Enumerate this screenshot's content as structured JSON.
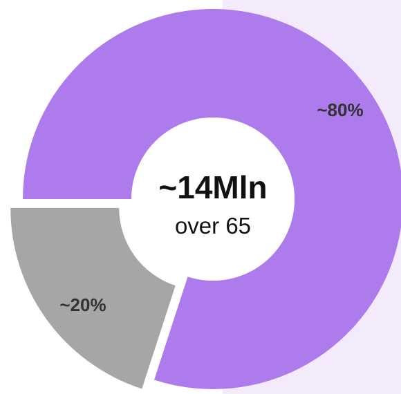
{
  "chart_data": {
    "type": "pie",
    "variant": "donut",
    "categories": [
      "~80%",
      "~20%"
    ],
    "values": [
      80,
      20
    ],
    "labels": [
      "~80%",
      "~20%"
    ],
    "colors": [
      "#ad7bec",
      "#a6a6a6"
    ],
    "exploded": [
      false,
      true
    ],
    "center": {
      "title": "~14Mln",
      "subtitle": "over 65"
    }
  },
  "background_panel_color": "#f3eafc"
}
